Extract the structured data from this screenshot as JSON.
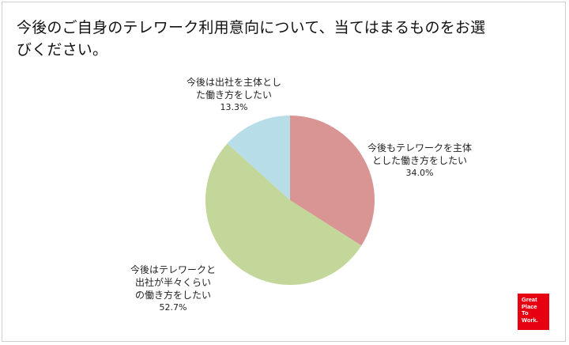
{
  "title_lines": [
    "今後のご自身のテレワーク利用意向について、当てはまるものをお選",
    "びください。"
  ],
  "chart_data": {
    "type": "pie",
    "slices": [
      {
        "label_lines": [
          "今後もテレワークを主体",
          "とした働き方をしたい"
        ],
        "value": 34.0,
        "value_text": "34.0%",
        "color": "#d99594"
      },
      {
        "label_lines": [
          "今後はテレワークと",
          "出社が半々くらい",
          "の働き方をしたい"
        ],
        "value": 52.7,
        "value_text": "52.7%",
        "color": "#c4d79b"
      },
      {
        "label_lines": [
          "今後は出社を主体とし",
          "た働き方をしたい"
        ],
        "value": 13.3,
        "value_text": "13.3%",
        "color": "#b7dde8"
      }
    ],
    "start": "12 o'clock",
    "direction": "clockwise"
  },
  "logo": {
    "lines": [
      "Great",
      "Place",
      "To",
      "Work."
    ],
    "color": "#e60012"
  }
}
